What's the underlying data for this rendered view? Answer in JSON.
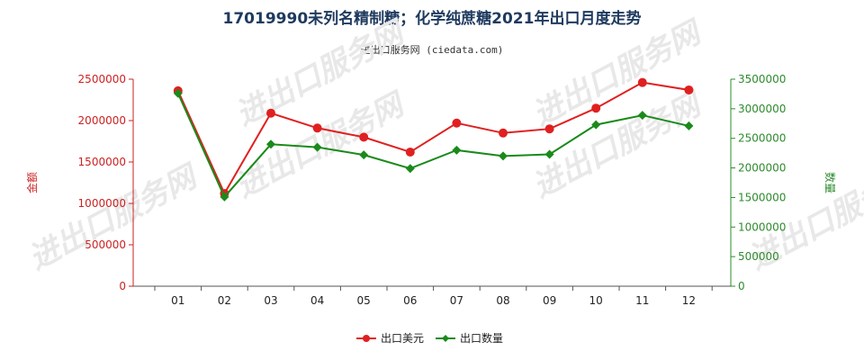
{
  "title": "17019990未列名精制糖；化学纯蔗糖2021年出口月度走势",
  "subtitle": "进出口服务网 (ciedata.com)",
  "watermark": "进出口服务网",
  "chart_data": {
    "type": "line",
    "categories": [
      "01",
      "02",
      "03",
      "04",
      "05",
      "06",
      "07",
      "08",
      "09",
      "10",
      "11",
      "12"
    ],
    "y_left": {
      "label": "金额",
      "ylim": [
        0,
        2500000
      ],
      "ticks": [
        "0",
        "500000",
        "1000000",
        "1500000",
        "2000000",
        "2500000"
      ],
      "color": "#cc2222"
    },
    "y_right": {
      "label": "数量",
      "ylim": [
        0,
        3500000
      ],
      "ticks": [
        "0",
        "500000",
        "1000000",
        "1500000",
        "2000000",
        "2500000",
        "3000000",
        "3500000"
      ],
      "color": "#2e8b2e"
    },
    "series": [
      {
        "name": "出口美元",
        "axis": "left",
        "color": "#e02020",
        "marker": "circle",
        "values": [
          2360000,
          1120000,
          2090000,
          1910000,
          1800000,
          1620000,
          1970000,
          1850000,
          1900000,
          2150000,
          2460000,
          2370000
        ]
      },
      {
        "name": "出口数量",
        "axis": "right",
        "color": "#1a8a1a",
        "marker": "diamond",
        "values": [
          3260000,
          1510000,
          2400000,
          2350000,
          2220000,
          1990000,
          2300000,
          2200000,
          2230000,
          2730000,
          2890000,
          2710000
        ]
      }
    ],
    "grid": false,
    "legend": "bottom-center"
  }
}
